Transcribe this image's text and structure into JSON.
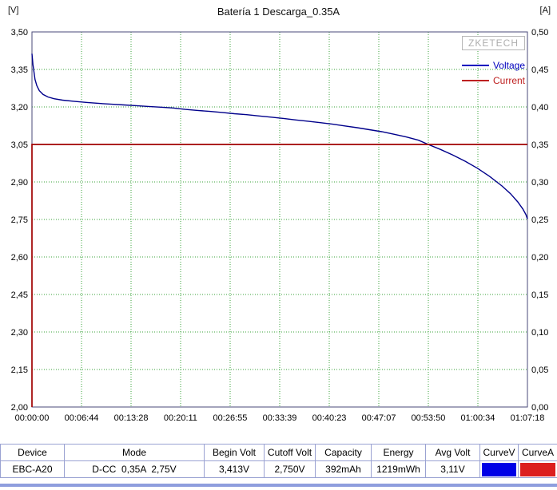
{
  "chart": {
    "title": "Batería 1 Descarga_0.35A",
    "left_unit": "[V]",
    "right_unit": "[A]",
    "watermark": "ZKETECH",
    "legend": [
      {
        "label": "Voltage",
        "color": "#0000BE"
      },
      {
        "label": "Current",
        "color": "#BE2020"
      }
    ]
  },
  "chart_data": {
    "type": "line",
    "title": "Batería 1 Descarga_0.35A",
    "grid": true,
    "legend_position": "top-right",
    "x_axis": {
      "min": 0,
      "max": 4038,
      "ticks": [
        {
          "t": 0,
          "label": "00:00:00"
        },
        {
          "t": 404,
          "label": "00:06:44"
        },
        {
          "t": 808,
          "label": "00:13:28"
        },
        {
          "t": 1211,
          "label": "00:20:11"
        },
        {
          "t": 1615,
          "label": "00:26:55"
        },
        {
          "t": 2019,
          "label": "00:33:39"
        },
        {
          "t": 2423,
          "label": "00:40:23"
        },
        {
          "t": 2827,
          "label": "00:47:07"
        },
        {
          "t": 3230,
          "label": "00:53:50"
        },
        {
          "t": 3634,
          "label": "01:00:34"
        },
        {
          "t": 4038,
          "label": "01:07:18"
        }
      ]
    },
    "left_axis": {
      "unit": "[V]",
      "min": 2.0,
      "max": 3.5,
      "ticks": [
        {
          "v": 3.5,
          "label": "3,50"
        },
        {
          "v": 3.35,
          "label": "3,35"
        },
        {
          "v": 3.2,
          "label": "3,20"
        },
        {
          "v": 3.05,
          "label": "3,05"
        },
        {
          "v": 2.9,
          "label": "2,90"
        },
        {
          "v": 2.75,
          "label": "2,75"
        },
        {
          "v": 2.6,
          "label": "2,60"
        },
        {
          "v": 2.45,
          "label": "2,45"
        },
        {
          "v": 2.3,
          "label": "2,30"
        },
        {
          "v": 2.15,
          "label": "2,15"
        },
        {
          "v": 2.0,
          "label": "2,00"
        }
      ]
    },
    "right_axis": {
      "unit": "[A]",
      "min": 0.0,
      "max": 0.5,
      "ticks": [
        {
          "v": 0.5,
          "label": "0,50"
        },
        {
          "v": 0.45,
          "label": "0,45"
        },
        {
          "v": 0.4,
          "label": "0,40"
        },
        {
          "v": 0.35,
          "label": "0,35"
        },
        {
          "v": 0.3,
          "label": "0,30"
        },
        {
          "v": 0.25,
          "label": "0,25"
        },
        {
          "v": 0.2,
          "label": "0,20"
        },
        {
          "v": 0.15,
          "label": "0,15"
        },
        {
          "v": 0.1,
          "label": "0,10"
        },
        {
          "v": 0.05,
          "label": "0,05"
        },
        {
          "v": 0.0,
          "label": "0,00"
        }
      ]
    },
    "series": [
      {
        "name": "Voltage",
        "axis": "left",
        "color": "#00008B",
        "points": [
          [
            0,
            3.413
          ],
          [
            8,
            3.37
          ],
          [
            15,
            3.345
          ],
          [
            25,
            3.31
          ],
          [
            40,
            3.285
          ],
          [
            60,
            3.265
          ],
          [
            90,
            3.25
          ],
          [
            130,
            3.24
          ],
          [
            180,
            3.233
          ],
          [
            250,
            3.227
          ],
          [
            350,
            3.222
          ],
          [
            450,
            3.218
          ],
          [
            550,
            3.214
          ],
          [
            650,
            3.211
          ],
          [
            750,
            3.208
          ],
          [
            850,
            3.205
          ],
          [
            950,
            3.202
          ],
          [
            1050,
            3.199
          ],
          [
            1150,
            3.196
          ],
          [
            1250,
            3.19
          ],
          [
            1350,
            3.186
          ],
          [
            1450,
            3.182
          ],
          [
            1550,
            3.178
          ],
          [
            1650,
            3.173
          ],
          [
            1750,
            3.169
          ],
          [
            1850,
            3.164
          ],
          [
            1950,
            3.159
          ],
          [
            2050,
            3.154
          ],
          [
            2150,
            3.148
          ],
          [
            2250,
            3.143
          ],
          [
            2350,
            3.137
          ],
          [
            2450,
            3.131
          ],
          [
            2550,
            3.124
          ],
          [
            2650,
            3.117
          ],
          [
            2750,
            3.109
          ],
          [
            2850,
            3.101
          ],
          [
            2950,
            3.091
          ],
          [
            3050,
            3.08
          ],
          [
            3150,
            3.067
          ],
          [
            3230,
            3.05
          ],
          [
            3330,
            3.03
          ],
          [
            3430,
            3.008
          ],
          [
            3530,
            2.983
          ],
          [
            3630,
            2.955
          ],
          [
            3730,
            2.922
          ],
          [
            3830,
            2.884
          ],
          [
            3900,
            2.853
          ],
          [
            3960,
            2.82
          ],
          [
            4000,
            2.792
          ],
          [
            4025,
            2.77
          ],
          [
            4038,
            2.752
          ]
        ]
      },
      {
        "name": "Current",
        "axis": "right",
        "color": "#A00000",
        "points": [
          [
            0,
            0
          ],
          [
            0,
            0.35
          ],
          [
            4038,
            0.35
          ]
        ]
      }
    ]
  },
  "table": {
    "headers": [
      "Device",
      "Mode",
      "Begin Volt",
      "Cutoff Volt",
      "Capacity",
      "Energy",
      "Avg Volt",
      "CurveV",
      "CurveA"
    ],
    "row": {
      "device": "EBC-A20",
      "mode": "D-CC  0,35A  2,75V",
      "begin_volt": "3,413V",
      "cutoff_volt": "2,750V",
      "capacity": "392mAh",
      "energy": "1219mWh",
      "avg_volt": "3,11V",
      "curve_v_color": "#0000E6",
      "curve_a_color": "#DC1E1E"
    }
  }
}
